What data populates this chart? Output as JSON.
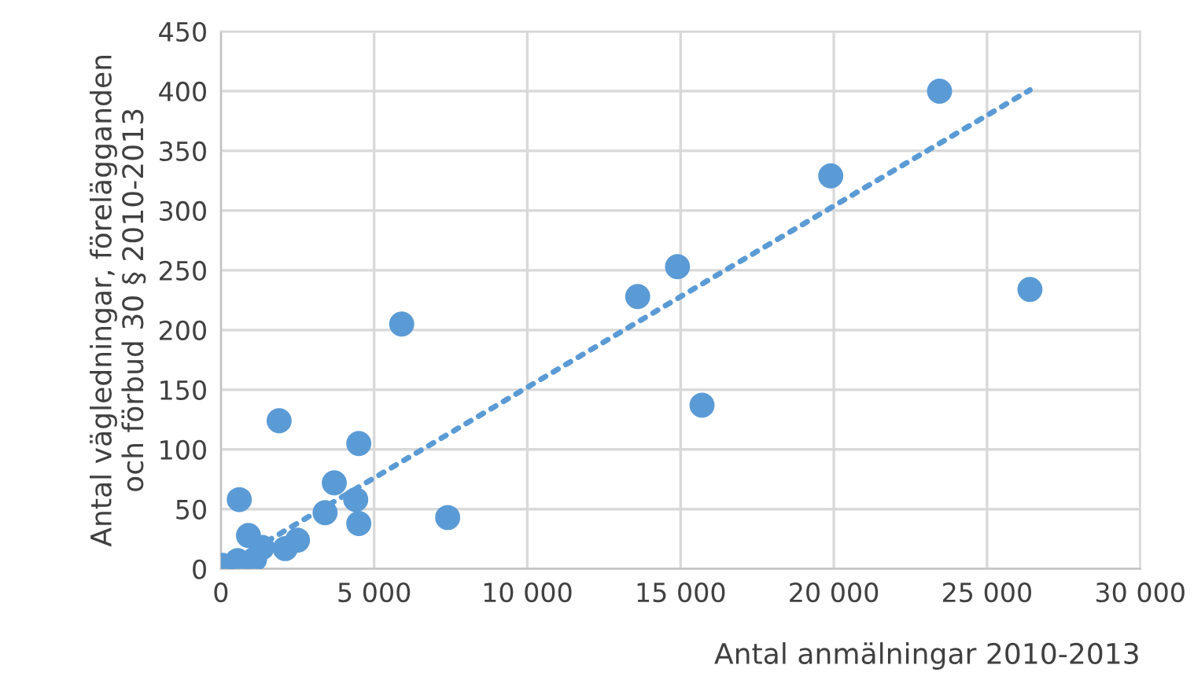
{
  "chart_data": {
    "type": "scatter",
    "xlabel": "Antal anmälningar 2010-2013",
    "ylabel": "Antal vägledningar, förelägganden\noch förbud 30 § 2010-2013",
    "series": [
      {
        "color": "#5b9bd5",
        "marker": "circle",
        "x": [
          23450,
          19900,
          14900,
          13600,
          26400,
          5900,
          15700,
          1900,
          4500,
          600,
          3700,
          4400,
          3400,
          4500,
          7400,
          900,
          2500,
          2100,
          1350,
          1100,
          550,
          50
        ],
        "values": [
          400,
          329,
          253,
          228,
          234,
          205,
          137,
          124,
          105,
          58,
          72,
          58,
          47,
          38,
          43,
          28,
          24,
          17,
          18,
          8,
          7,
          3
        ]
      },
      {
        "type": "line",
        "color": "#5b9bd5",
        "line_style": "dotted",
        "marker": "none",
        "x": [
          1500,
          26400
        ],
        "values": [
          23,
          401
        ]
      }
    ],
    "xlim": [
      0,
      30000
    ],
    "xticks": [
      0,
      {
        "value": 5000,
        "label": "5 000"
      },
      {
        "value": 10000,
        "label": "10 000"
      },
      {
        "value": 15000,
        "label": "15 000"
      },
      {
        "value": 20000,
        "label": "20 000"
      },
      {
        "value": 25000,
        "label": "25 000"
      },
      {
        "value": 30000,
        "label": "30 000"
      }
    ],
    "ylim": [
      0,
      450
    ],
    "yticks": [
      0,
      50,
      100,
      150,
      200,
      250,
      300,
      350,
      400,
      450
    ],
    "grid": true,
    "legend": false
  }
}
